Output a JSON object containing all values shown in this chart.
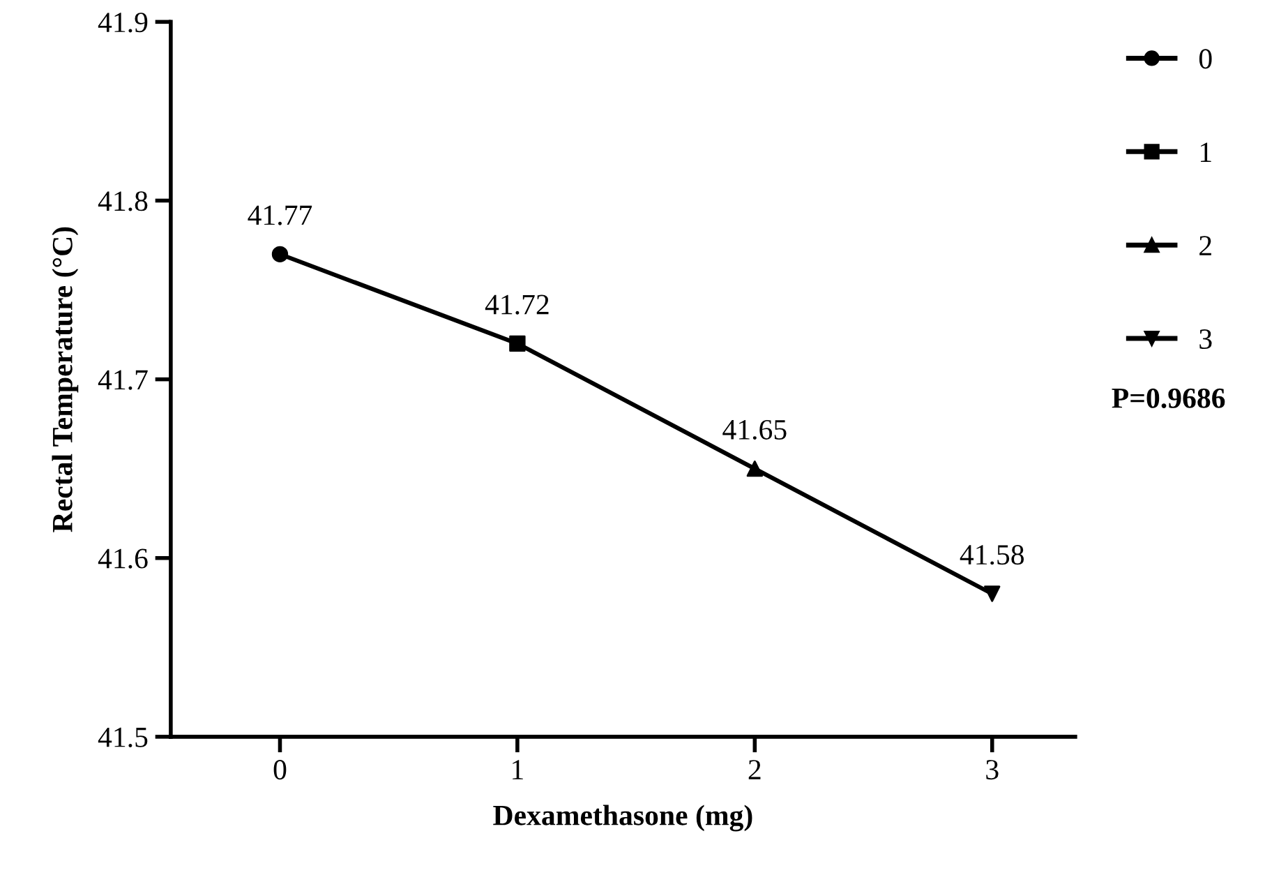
{
  "chart_data": {
    "type": "line",
    "xlabel": "Dexamethasone (mg)",
    "ylabel": "Rectal Temperature (°C)",
    "xlim": [
      -0.46,
      3.35
    ],
    "xticks": [
      0,
      1,
      2,
      3
    ],
    "ylim": [
      41.5,
      41.9
    ],
    "yticks": [
      41.5,
      41.6,
      41.7,
      41.8,
      41.9
    ],
    "grid": false,
    "legend": "top right",
    "annotations": [
      "P=0.9686"
    ],
    "series": [
      {
        "color": "#000000",
        "marker": "none",
        "x": [
          0,
          1,
          2,
          3
        ],
        "values": [
          41.77,
          41.72,
          41.65,
          41.58
        ],
        "value_labels": [
          "41.77",
          "41.72",
          "41.65",
          "41.58"
        ]
      },
      {
        "type": "scatter",
        "name": "0",
        "color": "#000000",
        "marker": "circle",
        "x": [
          0
        ],
        "values": [
          41.77
        ]
      },
      {
        "type": "scatter",
        "name": "1",
        "color": "#000000",
        "marker": "square",
        "x": [
          1
        ],
        "values": [
          41.72
        ]
      },
      {
        "type": "scatter",
        "name": "2",
        "color": "#000000",
        "marker": "triangle",
        "x": [
          2
        ],
        "values": [
          41.65
        ]
      },
      {
        "type": "scatter",
        "name": "3",
        "color": "#000000",
        "marker": "triangle_down",
        "x": [
          3
        ],
        "values": [
          41.58
        ]
      }
    ]
  }
}
